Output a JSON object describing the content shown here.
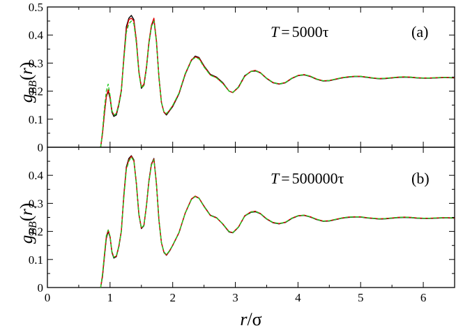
{
  "chart_data": [
    {
      "panel": "a",
      "type": "line",
      "xlabel": "r/σ",
      "ylabel": "g_BB(r)",
      "annotation_var": "T",
      "annotation_eq": "=",
      "annotation_value": "5000τ",
      "panel_label": "(a)",
      "xlim": [
        0,
        6.5
      ],
      "ylim": [
        0,
        0.5
      ],
      "xticks": [
        "0",
        "1",
        "2",
        "3",
        "4",
        "5",
        "6"
      ],
      "yticks": [
        "0",
        "0.1",
        "0.2",
        "0.3",
        "0.4",
        "0.5"
      ],
      "ytick_values": [
        0,
        0.1,
        0.2,
        0.3,
        0.4,
        0.5
      ],
      "grid": false,
      "series": [
        {
          "color": "#000000",
          "style": "solid",
          "x": [
            0.85,
            0.88,
            0.91,
            0.94,
            0.97,
            1.0,
            1.03,
            1.06,
            1.1,
            1.14,
            1.18,
            1.22,
            1.26,
            1.3,
            1.34,
            1.38,
            1.42,
            1.46,
            1.5,
            1.54,
            1.58,
            1.62,
            1.66,
            1.7,
            1.74,
            1.78,
            1.82,
            1.86,
            1.9,
            1.95,
            2.0,
            2.1,
            2.2,
            2.3,
            2.36,
            2.42,
            2.5,
            2.6,
            2.7,
            2.8,
            2.9,
            2.96,
            3.05,
            3.15,
            3.25,
            3.32,
            3.4,
            3.5,
            3.6,
            3.7,
            3.8,
            3.9,
            4.0,
            4.1,
            4.2,
            4.3,
            4.4,
            4.5,
            4.6,
            4.7,
            4.8,
            4.9,
            5.0,
            5.1,
            5.2,
            5.3,
            5.4,
            5.5,
            5.6,
            5.7,
            5.8,
            5.9,
            6.0,
            6.1,
            6.2,
            6.3,
            6.4,
            6.5
          ],
          "y": [
            0.0,
            0.05,
            0.12,
            0.18,
            0.2,
            0.175,
            0.125,
            0.11,
            0.115,
            0.15,
            0.2,
            0.32,
            0.43,
            0.46,
            0.47,
            0.455,
            0.38,
            0.27,
            0.21,
            0.22,
            0.28,
            0.37,
            0.43,
            0.455,
            0.38,
            0.25,
            0.16,
            0.125,
            0.115,
            0.13,
            0.145,
            0.19,
            0.26,
            0.31,
            0.325,
            0.32,
            0.29,
            0.26,
            0.25,
            0.23,
            0.2,
            0.195,
            0.215,
            0.255,
            0.27,
            0.272,
            0.265,
            0.245,
            0.23,
            0.225,
            0.23,
            0.245,
            0.255,
            0.258,
            0.252,
            0.242,
            0.236,
            0.237,
            0.242,
            0.247,
            0.25,
            0.252,
            0.252,
            0.249,
            0.246,
            0.244,
            0.245,
            0.247,
            0.249,
            0.25,
            0.249,
            0.247,
            0.246,
            0.246,
            0.247,
            0.248,
            0.248,
            0.247
          ]
        },
        {
          "color": "#dd0000",
          "style": "solid",
          "x": [
            0.85,
            0.88,
            0.91,
            0.94,
            0.97,
            1.0,
            1.03,
            1.06,
            1.1,
            1.14,
            1.18,
            1.22,
            1.26,
            1.3,
            1.34,
            1.38,
            1.42,
            1.46,
            1.5,
            1.54,
            1.58,
            1.62,
            1.66,
            1.7,
            1.74,
            1.78,
            1.82,
            1.86,
            1.9,
            1.95,
            2.0,
            2.1,
            2.2,
            2.3,
            2.36,
            2.42,
            2.5,
            2.6,
            2.7,
            2.8,
            2.9,
            2.96,
            3.05,
            3.15,
            3.25,
            3.32,
            3.4,
            3.5,
            3.6,
            3.7,
            3.8,
            3.9,
            4.0,
            4.1,
            4.2,
            4.3,
            4.4,
            4.5,
            4.6,
            4.7,
            4.8,
            4.9,
            5.0,
            5.1,
            5.2,
            5.3,
            5.4,
            5.5,
            5.6,
            5.7,
            5.8,
            5.9,
            6.0,
            6.1,
            6.2,
            6.3,
            6.4,
            6.5
          ],
          "y": [
            0.0,
            0.05,
            0.125,
            0.18,
            0.205,
            0.18,
            0.13,
            0.115,
            0.12,
            0.155,
            0.205,
            0.315,
            0.42,
            0.455,
            0.46,
            0.45,
            0.38,
            0.27,
            0.215,
            0.225,
            0.285,
            0.375,
            0.435,
            0.46,
            0.38,
            0.25,
            0.16,
            0.125,
            0.118,
            0.132,
            0.148,
            0.192,
            0.262,
            0.312,
            0.322,
            0.318,
            0.288,
            0.258,
            0.248,
            0.228,
            0.2,
            0.195,
            0.213,
            0.253,
            0.271,
            0.274,
            0.266,
            0.246,
            0.231,
            0.226,
            0.231,
            0.246,
            0.256,
            0.259,
            0.253,
            0.243,
            0.237,
            0.238,
            0.243,
            0.248,
            0.251,
            0.253,
            0.253,
            0.25,
            0.247,
            0.245,
            0.246,
            0.248,
            0.25,
            0.251,
            0.25,
            0.248,
            0.247,
            0.247,
            0.248,
            0.249,
            0.249,
            0.248
          ]
        },
        {
          "color": "#22cc22",
          "style": "dashed",
          "x": [
            0.85,
            0.88,
            0.91,
            0.94,
            0.97,
            1.0,
            1.03,
            1.06,
            1.1,
            1.14,
            1.18,
            1.22,
            1.26,
            1.3,
            1.34,
            1.38,
            1.42,
            1.46,
            1.5,
            1.54,
            1.58,
            1.62,
            1.66,
            1.7,
            1.74,
            1.78,
            1.82,
            1.86,
            1.9,
            1.95,
            2.0,
            2.1,
            2.2,
            2.3,
            2.36,
            2.42,
            2.5,
            2.6,
            2.7,
            2.8,
            2.9,
            2.96,
            3.05,
            3.15,
            3.25,
            3.32,
            3.4,
            3.5,
            3.6,
            3.7,
            3.8,
            3.9,
            4.0,
            4.1,
            4.2,
            4.3,
            4.4,
            4.5,
            4.6,
            4.7,
            4.8,
            4.9,
            5.0,
            5.1,
            5.2,
            5.3,
            5.4,
            5.5,
            5.6,
            5.7,
            5.8,
            5.9,
            6.0,
            6.1,
            6.2,
            6.3,
            6.4,
            6.5
          ],
          "y": [
            0.0,
            0.06,
            0.14,
            0.2,
            0.225,
            0.185,
            0.13,
            0.115,
            0.12,
            0.15,
            0.2,
            0.31,
            0.41,
            0.44,
            0.45,
            0.44,
            0.37,
            0.265,
            0.21,
            0.22,
            0.28,
            0.37,
            0.43,
            0.45,
            0.375,
            0.25,
            0.16,
            0.127,
            0.12,
            0.133,
            0.149,
            0.193,
            0.263,
            0.31,
            0.32,
            0.315,
            0.286,
            0.257,
            0.247,
            0.227,
            0.2,
            0.196,
            0.214,
            0.254,
            0.27,
            0.273,
            0.265,
            0.246,
            0.231,
            0.226,
            0.231,
            0.246,
            0.256,
            0.259,
            0.253,
            0.243,
            0.237,
            0.238,
            0.243,
            0.248,
            0.251,
            0.253,
            0.253,
            0.25,
            0.247,
            0.245,
            0.246,
            0.248,
            0.25,
            0.251,
            0.25,
            0.248,
            0.247,
            0.247,
            0.248,
            0.249,
            0.249,
            0.248
          ]
        }
      ]
    },
    {
      "panel": "b",
      "type": "line",
      "xlabel": "r/σ",
      "ylabel": "g_BB(r)",
      "annotation_var": "T",
      "annotation_eq": "=",
      "annotation_value": "500000τ",
      "panel_label": "(b)",
      "xlim": [
        0,
        6.5
      ],
      "ylim": [
        0,
        0.5
      ],
      "xticks": [
        "0",
        "1",
        "2",
        "3",
        "4",
        "5",
        "6"
      ],
      "yticks": [
        "0",
        "0.1",
        "0.2",
        "0.3",
        "0.4"
      ],
      "ytick_values": [
        0,
        0.1,
        0.2,
        0.3,
        0.4
      ],
      "grid": false,
      "series": [
        {
          "color": "#000000",
          "style": "solid",
          "x": [
            0.85,
            0.88,
            0.91,
            0.94,
            0.97,
            1.0,
            1.03,
            1.06,
            1.1,
            1.14,
            1.18,
            1.22,
            1.26,
            1.3,
            1.34,
            1.38,
            1.42,
            1.46,
            1.5,
            1.54,
            1.58,
            1.62,
            1.66,
            1.7,
            1.74,
            1.78,
            1.82,
            1.86,
            1.9,
            1.95,
            2.0,
            2.1,
            2.2,
            2.3,
            2.36,
            2.42,
            2.5,
            2.6,
            2.7,
            2.8,
            2.9,
            2.96,
            3.05,
            3.15,
            3.25,
            3.32,
            3.4,
            3.5,
            3.6,
            3.7,
            3.8,
            3.9,
            4.0,
            4.1,
            4.2,
            4.3,
            4.4,
            4.5,
            4.6,
            4.7,
            4.8,
            4.9,
            5.0,
            5.1,
            5.2,
            5.3,
            5.4,
            5.5,
            5.6,
            5.7,
            5.8,
            5.9,
            6.0,
            6.1,
            6.2,
            6.3,
            6.4,
            6.5
          ],
          "y": [
            0.0,
            0.04,
            0.11,
            0.175,
            0.2,
            0.18,
            0.125,
            0.105,
            0.11,
            0.145,
            0.2,
            0.33,
            0.43,
            0.46,
            0.47,
            0.455,
            0.37,
            0.26,
            0.21,
            0.22,
            0.29,
            0.38,
            0.44,
            0.46,
            0.37,
            0.24,
            0.16,
            0.125,
            0.115,
            0.13,
            0.15,
            0.195,
            0.265,
            0.315,
            0.325,
            0.318,
            0.29,
            0.258,
            0.249,
            0.226,
            0.198,
            0.195,
            0.215,
            0.255,
            0.268,
            0.27,
            0.263,
            0.244,
            0.231,
            0.227,
            0.232,
            0.246,
            0.255,
            0.257,
            0.251,
            0.242,
            0.236,
            0.237,
            0.242,
            0.247,
            0.25,
            0.251,
            0.251,
            0.248,
            0.246,
            0.244,
            0.245,
            0.247,
            0.249,
            0.25,
            0.249,
            0.247,
            0.246,
            0.246,
            0.247,
            0.248,
            0.248,
            0.247
          ]
        },
        {
          "color": "#dd0000",
          "style": "solid",
          "x": [
            0.85,
            0.88,
            0.91,
            0.94,
            0.97,
            1.0,
            1.03,
            1.06,
            1.1,
            1.14,
            1.18,
            1.22,
            1.26,
            1.3,
            1.34,
            1.38,
            1.42,
            1.46,
            1.5,
            1.54,
            1.58,
            1.62,
            1.66,
            1.7,
            1.74,
            1.78,
            1.82,
            1.86,
            1.9,
            1.95,
            2.0,
            2.1,
            2.2,
            2.3,
            2.36,
            2.42,
            2.5,
            2.6,
            2.7,
            2.8,
            2.9,
            2.96,
            3.05,
            3.15,
            3.25,
            3.32,
            3.4,
            3.5,
            3.6,
            3.7,
            3.8,
            3.9,
            4.0,
            4.1,
            4.2,
            4.3,
            4.4,
            4.5,
            4.6,
            4.7,
            4.8,
            4.9,
            5.0,
            5.1,
            5.2,
            5.3,
            5.4,
            5.5,
            5.6,
            5.7,
            5.8,
            5.9,
            6.0,
            6.1,
            6.2,
            6.3,
            6.4,
            6.5
          ],
          "y": [
            0.0,
            0.045,
            0.115,
            0.18,
            0.205,
            0.182,
            0.128,
            0.108,
            0.112,
            0.148,
            0.202,
            0.325,
            0.425,
            0.455,
            0.468,
            0.452,
            0.372,
            0.262,
            0.212,
            0.222,
            0.29,
            0.378,
            0.438,
            0.458,
            0.372,
            0.242,
            0.16,
            0.126,
            0.116,
            0.131,
            0.151,
            0.196,
            0.266,
            0.316,
            0.326,
            0.319,
            0.289,
            0.257,
            0.248,
            0.227,
            0.199,
            0.196,
            0.216,
            0.256,
            0.27,
            0.272,
            0.264,
            0.245,
            0.232,
            0.228,
            0.233,
            0.247,
            0.256,
            0.258,
            0.252,
            0.243,
            0.237,
            0.238,
            0.243,
            0.248,
            0.251,
            0.252,
            0.252,
            0.249,
            0.247,
            0.245,
            0.246,
            0.248,
            0.25,
            0.251,
            0.25,
            0.248,
            0.247,
            0.247,
            0.248,
            0.249,
            0.249,
            0.248
          ]
        },
        {
          "color": "#22cc22",
          "style": "dashed",
          "x": [
            0.85,
            0.88,
            0.91,
            0.94,
            0.97,
            1.0,
            1.03,
            1.06,
            1.1,
            1.14,
            1.18,
            1.22,
            1.26,
            1.3,
            1.34,
            1.38,
            1.42,
            1.46,
            1.5,
            1.54,
            1.58,
            1.62,
            1.66,
            1.7,
            1.74,
            1.78,
            1.82,
            1.86,
            1.9,
            1.95,
            2.0,
            2.1,
            2.2,
            2.3,
            2.36,
            2.42,
            2.5,
            2.6,
            2.7,
            2.8,
            2.9,
            2.96,
            3.05,
            3.15,
            3.25,
            3.32,
            3.4,
            3.5,
            3.6,
            3.7,
            3.8,
            3.9,
            4.0,
            4.1,
            4.2,
            4.3,
            4.4,
            4.5,
            4.6,
            4.7,
            4.8,
            4.9,
            5.0,
            5.1,
            5.2,
            5.3,
            5.4,
            5.5,
            5.6,
            5.7,
            5.8,
            5.9,
            6.0,
            6.1,
            6.2,
            6.3,
            6.4,
            6.5
          ],
          "y": [
            0.0,
            0.05,
            0.12,
            0.185,
            0.205,
            0.183,
            0.128,
            0.108,
            0.113,
            0.147,
            0.2,
            0.32,
            0.42,
            0.45,
            0.465,
            0.45,
            0.37,
            0.262,
            0.212,
            0.222,
            0.288,
            0.376,
            0.436,
            0.455,
            0.37,
            0.242,
            0.16,
            0.127,
            0.117,
            0.132,
            0.151,
            0.196,
            0.265,
            0.314,
            0.324,
            0.318,
            0.288,
            0.257,
            0.248,
            0.227,
            0.2,
            0.196,
            0.215,
            0.255,
            0.269,
            0.271,
            0.264,
            0.245,
            0.232,
            0.228,
            0.233,
            0.247,
            0.256,
            0.258,
            0.252,
            0.243,
            0.237,
            0.238,
            0.243,
            0.248,
            0.251,
            0.252,
            0.252,
            0.249,
            0.247,
            0.245,
            0.246,
            0.248,
            0.25,
            0.251,
            0.25,
            0.248,
            0.247,
            0.247,
            0.248,
            0.249,
            0.249,
            0.248
          ]
        }
      ]
    }
  ]
}
